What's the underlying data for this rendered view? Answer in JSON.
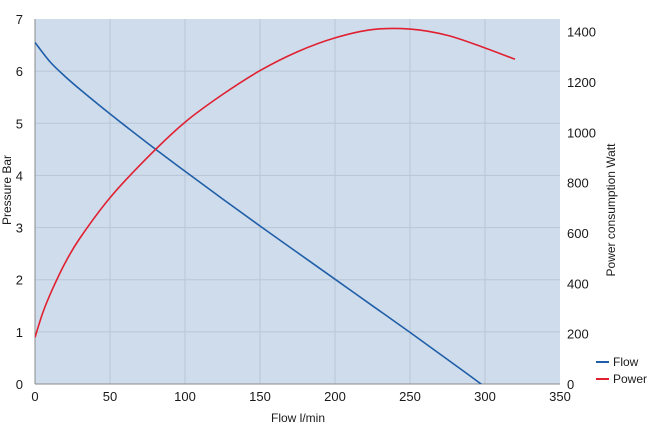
{
  "chart_data": {
    "type": "line",
    "xlabel": "Flow l/min",
    "ylabel_left": "Pressure Bar",
    "ylabel_right": "Power consumption Watt",
    "xlim": [
      0,
      350
    ],
    "ylim_left": [
      0,
      7
    ],
    "ylim_right": [
      0,
      1450
    ],
    "x_ticks": [
      "0",
      "50",
      "100",
      "150",
      "200",
      "250",
      "300",
      "350"
    ],
    "y_left_ticks": [
      "0",
      "1",
      "2",
      "3",
      "4",
      "5",
      "6",
      "7"
    ],
    "y_right_ticks": [
      "0",
      "200",
      "400",
      "600",
      "800",
      "1000",
      "1200",
      "1400"
    ],
    "grid": true,
    "legend_position": "bottom-right",
    "colors": {
      "plot_background": "#cfdcec",
      "grid": "#b8c6d6",
      "flow": "#1f5ea8",
      "power": "#e02030"
    },
    "series": [
      {
        "name": "Flow",
        "axis": "left",
        "x": [
          0,
          10,
          20,
          30,
          50,
          75,
          100,
          125,
          150,
          175,
          200,
          225,
          250,
          275,
          300,
          320
        ],
        "values": [
          6.55,
          6.18,
          5.9,
          5.65,
          5.18,
          4.62,
          4.08,
          3.55,
          3.03,
          2.52,
          2.01,
          1.5,
          0.99,
          0.47,
          -0.06,
          -0.55
        ]
      },
      {
        "name": "Power",
        "axis": "right",
        "x": [
          0,
          5,
          10,
          20,
          30,
          50,
          75,
          100,
          125,
          150,
          175,
          200,
          225,
          250,
          275,
          300,
          320
        ],
        "values": [
          185,
          280,
          355,
          480,
          580,
          740,
          900,
          1040,
          1150,
          1245,
          1320,
          1375,
          1408,
          1410,
          1385,
          1335,
          1290
        ]
      }
    ]
  }
}
